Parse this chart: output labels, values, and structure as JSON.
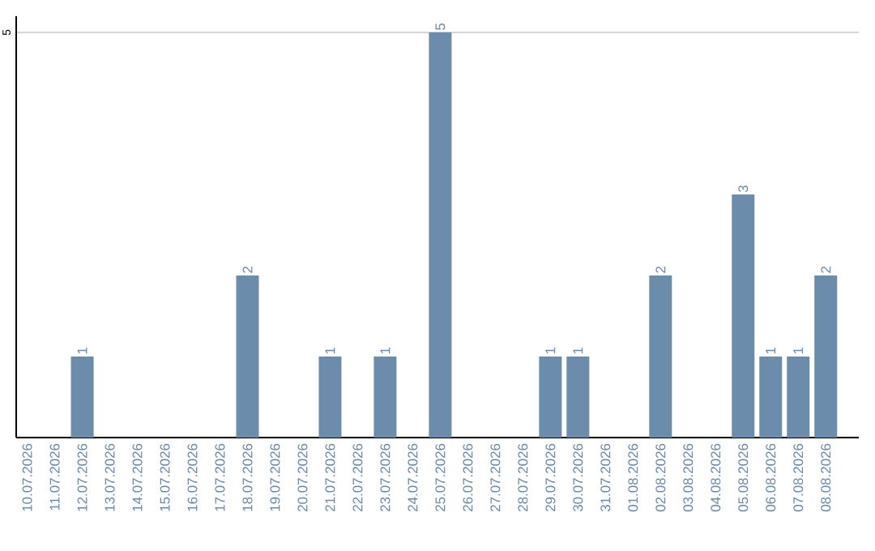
{
  "chart_data": {
    "type": "bar",
    "categories": [
      "10.07.2026",
      "11.07.2026",
      "12.07.2026",
      "13.07.2026",
      "14.07.2026",
      "15.07.2026",
      "16.07.2026",
      "17.07.2026",
      "18.07.2026",
      "19.07.2026",
      "20.07.2026",
      "21.07.2026",
      "22.07.2026",
      "23.07.2026",
      "24.07.2026",
      "25.07.2026",
      "26.07.2026",
      "27.07.2026",
      "28.07.2026",
      "29.07.2026",
      "30.07.2026",
      "31.07.2026",
      "01.08.2026",
      "02.08.2026",
      "03.08.2026",
      "04.08.2026",
      "05.08.2026",
      "06.08.2026",
      "07.08.2026",
      "08.08.2026"
    ],
    "values": [
      0,
      0,
      1,
      0,
      0,
      0,
      0,
      0,
      2,
      0,
      0,
      1,
      0,
      1,
      0,
      5,
      0,
      0,
      0,
      1,
      1,
      0,
      0,
      2,
      0,
      0,
      3,
      1,
      1,
      2
    ],
    "value_labels": [
      null,
      null,
      "1",
      null,
      null,
      null,
      null,
      null,
      "2",
      null,
      null,
      "1",
      null,
      "1",
      null,
      "5",
      null,
      null,
      null,
      "1",
      "1",
      null,
      null,
      "2",
      null,
      null,
      "3",
      "1",
      "1",
      "2"
    ],
    "color": "#6b8cab",
    "ylim": [
      0,
      5.2
    ],
    "yticks": [
      5
    ],
    "grid": "y"
  }
}
